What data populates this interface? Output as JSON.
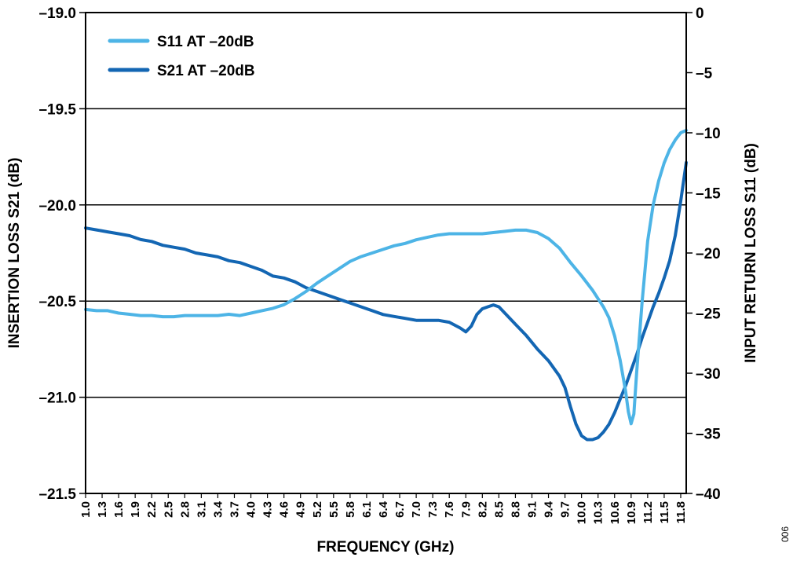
{
  "chart_data": {
    "type": "line",
    "xlabel": "FREQUENCY (GHz)",
    "ylabel_left": "INSERTION LOSS S21 (dB)",
    "ylabel_right": "INPUT RETURN LOSS S11 (dB)",
    "x_range": [
      1.0,
      11.9
    ],
    "y_left_range": [
      -21.5,
      -19.0
    ],
    "y_right_range": [
      -40,
      0
    ],
    "x_ticks": [
      "1.0",
      "1.3",
      "1.6",
      "1.9",
      "2.2",
      "2.5",
      "2.8",
      "3.1",
      "3.4",
      "3.7",
      "4.0",
      "4.3",
      "4.6",
      "4.9",
      "5.2",
      "5.5",
      "5.8",
      "6.1",
      "6.4",
      "6.7",
      "7.0",
      "7.3",
      "7.6",
      "7.9",
      "8.2",
      "8.5",
      "8.8",
      "9.1",
      "9.4",
      "9.7",
      "10.0",
      "10.3",
      "10.6",
      "10.9",
      "11.2",
      "11.5",
      "11.8"
    ],
    "y_left_ticks": [
      "–19.0",
      "–19.5",
      "–20.0",
      "–20.5",
      "–21.0",
      "–21.5"
    ],
    "y_left_tick_values": [
      -19.0,
      -19.5,
      -20.0,
      -20.5,
      -21.0,
      -21.5
    ],
    "y_right_ticks": [
      "0",
      "–5",
      "–10",
      "–15",
      "–20",
      "–25",
      "–30",
      "–35",
      "–40"
    ],
    "y_right_tick_values": [
      0,
      -5,
      -10,
      -15,
      -20,
      -25,
      -30,
      -35,
      -40
    ],
    "grid": "horizontal",
    "legend_position": "top-left",
    "colors": {
      "s11": "#4db4e6",
      "s21": "#1366b3",
      "axis": "#000000"
    },
    "series": [
      {
        "name": "S11 AT –20dB",
        "axis": "right",
        "x": [
          1.0,
          1.2,
          1.4,
          1.6,
          1.8,
          2.0,
          2.2,
          2.4,
          2.6,
          2.8,
          3.0,
          3.2,
          3.4,
          3.6,
          3.8,
          4.0,
          4.2,
          4.4,
          4.6,
          4.8,
          5.0,
          5.2,
          5.4,
          5.6,
          5.8,
          6.0,
          6.2,
          6.4,
          6.6,
          6.8,
          7.0,
          7.2,
          7.4,
          7.6,
          7.8,
          8.0,
          8.2,
          8.4,
          8.6,
          8.8,
          9.0,
          9.2,
          9.4,
          9.6,
          9.8,
          10.0,
          10.2,
          10.4,
          10.5,
          10.6,
          10.7,
          10.8,
          10.85,
          10.9,
          10.95,
          11.0,
          11.1,
          11.2,
          11.3,
          11.4,
          11.5,
          11.6,
          11.7,
          11.8,
          11.9
        ],
        "y": [
          -24.7,
          -24.8,
          -24.8,
          -25.0,
          -25.1,
          -25.2,
          -25.2,
          -25.3,
          -25.3,
          -25.2,
          -25.2,
          -25.2,
          -25.2,
          -25.1,
          -25.2,
          -25.0,
          -24.8,
          -24.6,
          -24.3,
          -23.8,
          -23.2,
          -22.5,
          -21.9,
          -21.3,
          -20.7,
          -20.3,
          -20.0,
          -19.7,
          -19.4,
          -19.2,
          -18.9,
          -18.7,
          -18.5,
          -18.4,
          -18.4,
          -18.4,
          -18.4,
          -18.3,
          -18.2,
          -18.1,
          -18.1,
          -18.3,
          -18.8,
          -19.6,
          -20.8,
          -21.9,
          -23.1,
          -24.5,
          -25.4,
          -26.9,
          -28.9,
          -31.5,
          -33.2,
          -34.2,
          -33.4,
          -30.0,
          -24.0,
          -19.0,
          -16.0,
          -14.0,
          -12.5,
          -11.4,
          -10.6,
          -10.0,
          -9.8
        ]
      },
      {
        "name": "S21 AT –20dB",
        "axis": "left",
        "x": [
          1.0,
          1.2,
          1.4,
          1.6,
          1.8,
          2.0,
          2.2,
          2.4,
          2.6,
          2.8,
          3.0,
          3.2,
          3.4,
          3.6,
          3.8,
          4.0,
          4.2,
          4.4,
          4.6,
          4.8,
          5.0,
          5.2,
          5.4,
          5.6,
          5.8,
          6.0,
          6.2,
          6.4,
          6.6,
          6.8,
          7.0,
          7.2,
          7.4,
          7.6,
          7.8,
          7.9,
          8.0,
          8.1,
          8.2,
          8.3,
          8.4,
          8.5,
          8.6,
          8.8,
          9.0,
          9.2,
          9.4,
          9.6,
          9.7,
          9.8,
          9.9,
          10.0,
          10.1,
          10.2,
          10.3,
          10.4,
          10.5,
          10.6,
          10.7,
          10.8,
          10.9,
          11.0,
          11.1,
          11.2,
          11.3,
          11.4,
          11.5,
          11.6,
          11.7,
          11.8,
          11.9
        ],
        "y": [
          -20.12,
          -20.13,
          -20.14,
          -20.15,
          -20.16,
          -20.18,
          -20.19,
          -20.21,
          -20.22,
          -20.23,
          -20.25,
          -20.26,
          -20.27,
          -20.29,
          -20.3,
          -20.32,
          -20.34,
          -20.37,
          -20.38,
          -20.4,
          -20.43,
          -20.45,
          -20.47,
          -20.49,
          -20.51,
          -20.53,
          -20.55,
          -20.57,
          -20.58,
          -20.59,
          -20.6,
          -20.6,
          -20.6,
          -20.61,
          -20.64,
          -20.66,
          -20.63,
          -20.57,
          -20.54,
          -20.53,
          -20.52,
          -20.53,
          -20.56,
          -20.62,
          -20.68,
          -20.75,
          -20.81,
          -20.89,
          -20.95,
          -21.05,
          -21.14,
          -21.2,
          -21.22,
          -21.22,
          -21.21,
          -21.18,
          -21.14,
          -21.08,
          -21.01,
          -20.94,
          -20.86,
          -20.78,
          -20.69,
          -20.61,
          -20.53,
          -20.46,
          -20.38,
          -20.29,
          -20.16,
          -19.98,
          -19.78
        ]
      }
    ]
  },
  "figure_id": "006"
}
